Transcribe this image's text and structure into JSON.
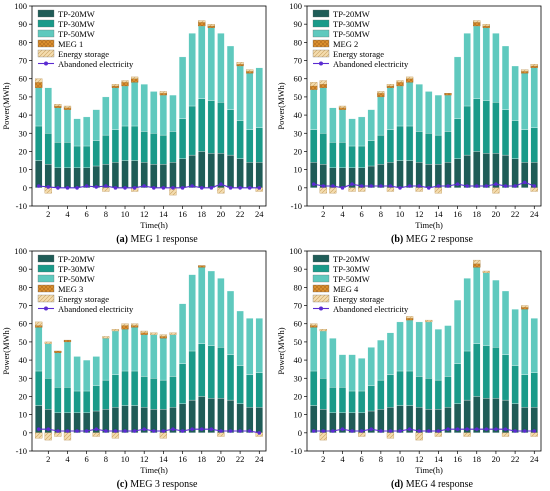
{
  "colors": {
    "tp20": "#1f5c57",
    "tp30": "#1a9a89",
    "tp50": "#5fc9be",
    "meg": "#d98e2e",
    "storage": "#f2d7a6",
    "abandoned": "#5a2bd1"
  },
  "chart_data": [
    {
      "type": "bar",
      "panel": "(a)",
      "caption": "MEG 1 response",
      "xlabel": "Time(h)",
      "ylabel": "Power(MWh)",
      "ylim": [
        -10,
        100
      ],
      "yticks": [
        -10,
        0,
        10,
        20,
        30,
        40,
        50,
        60,
        70,
        80,
        90,
        100
      ],
      "xticks": [
        2,
        4,
        6,
        8,
        10,
        12,
        14,
        16,
        18,
        20,
        22,
        24
      ],
      "legend": [
        "TP-20MW",
        "TP-30MW",
        "TP-50MW",
        "MEG 1",
        "Energy storage",
        "Abandoned electricity"
      ],
      "x": [
        1,
        2,
        3,
        4,
        5,
        6,
        7,
        8,
        9,
        10,
        11,
        12,
        13,
        14,
        15,
        16,
        17,
        18,
        19,
        20,
        21,
        22,
        23,
        24
      ],
      "series": [
        {
          "name": "TP-20MW",
          "values": [
            15,
            13,
            11,
            11,
            11,
            11,
            12,
            13,
            14,
            15,
            15,
            14,
            13,
            13,
            14,
            16,
            18,
            20,
            19,
            19,
            18,
            16,
            14,
            14
          ]
        },
        {
          "name": "TP-30MW",
          "values": [
            19,
            17,
            14,
            14,
            12,
            12,
            14,
            16,
            18,
            19,
            19,
            17,
            17,
            16,
            17,
            22,
            27,
            29,
            29,
            28,
            25,
            21,
            18,
            19
          ]
        },
        {
          "name": "TP-50MW",
          "values": [
            21,
            25,
            19,
            18,
            15,
            16,
            17,
            21,
            23,
            22,
            24,
            26,
            23,
            22,
            20,
            34,
            40,
            40,
            40,
            38,
            35,
            30,
            31,
            33
          ]
        },
        {
          "name": "MEG 1",
          "values": [
            3,
            0,
            1,
            1,
            0,
            0,
            0,
            0,
            1,
            2,
            2,
            0,
            0,
            1,
            0,
            0,
            0,
            2,
            1,
            0,
            0,
            1,
            1,
            0
          ]
        },
        {
          "name": "Energy storage",
          "values": [
            2,
            0,
            1,
            1,
            0,
            0,
            0,
            0,
            1,
            1,
            1,
            0,
            0,
            1,
            0,
            0,
            0,
            1,
            1,
            0,
            0,
            1,
            1,
            0
          ]
        },
        {
          "name": "Energy storage (charging)",
          "values": [
            0,
            -3,
            0,
            0,
            0,
            0,
            0,
            -2,
            0,
            0,
            -2,
            0,
            0,
            0,
            -4,
            0,
            0,
            0,
            0,
            -3,
            0,
            0,
            0,
            -2
          ]
        },
        {
          "name": "Abandoned electricity",
          "values": [
            1,
            0.5,
            0,
            0,
            0,
            1,
            0.5,
            1,
            0,
            0,
            0,
            1,
            0,
            0,
            0,
            0,
            1,
            0,
            0,
            2,
            0,
            0,
            0,
            0
          ]
        }
      ]
    },
    {
      "type": "bar",
      "panel": "(b)",
      "caption": "MEG 2 response",
      "xlabel": "Time(h)",
      "ylabel": "Power(MWh)",
      "ylim": [
        -10,
        100
      ],
      "yticks": [
        -10,
        0,
        10,
        20,
        30,
        40,
        50,
        60,
        70,
        80,
        90,
        100
      ],
      "xticks": [
        2,
        4,
        6,
        8,
        10,
        12,
        14,
        16,
        18,
        20,
        22,
        24
      ],
      "legend": [
        "TP-20MW",
        "TP-30MW",
        "TP-50MW",
        "MEG 2",
        "Energy storage",
        "Abandoned electricity"
      ],
      "x": [
        1,
        2,
        3,
        4,
        5,
        6,
        7,
        8,
        9,
        10,
        11,
        12,
        13,
        14,
        15,
        16,
        17,
        18,
        19,
        20,
        21,
        22,
        23,
        24
      ],
      "series": [
        {
          "name": "TP-20MW",
          "values": [
            14,
            13,
            11,
            11,
            11,
            11,
            12,
            13,
            14,
            15,
            15,
            14,
            13,
            13,
            14,
            16,
            18,
            20,
            19,
            19,
            18,
            16,
            14,
            14
          ]
        },
        {
          "name": "TP-30MW",
          "values": [
            18,
            17,
            14,
            14,
            12,
            12,
            14,
            16,
            18,
            19,
            19,
            17,
            17,
            16,
            17,
            22,
            27,
            29,
            29,
            28,
            25,
            21,
            18,
            19
          ]
        },
        {
          "name": "TP-50MW",
          "values": [
            22,
            25,
            19,
            18,
            15,
            16,
            17,
            21,
            23,
            22,
            24,
            26,
            23,
            22,
            20,
            34,
            40,
            40,
            40,
            38,
            35,
            30,
            31,
            33
          ]
        },
        {
          "name": "MEG 2",
          "values": [
            2,
            2,
            0,
            1,
            0,
            0,
            0,
            2,
            1,
            2,
            2,
            0,
            0,
            0,
            1,
            0,
            0,
            2,
            1,
            0,
            0,
            0,
            1,
            1
          ]
        },
        {
          "name": "Energy storage",
          "values": [
            2,
            2,
            0,
            1,
            0,
            0,
            0,
            1,
            1,
            1,
            1,
            0,
            0,
            0,
            0,
            0,
            0,
            1,
            1,
            0,
            0,
            0,
            1,
            1
          ]
        },
        {
          "name": "Energy storage (charging)",
          "values": [
            0,
            -3,
            -3,
            0,
            -2,
            -2,
            0,
            0,
            -2,
            0,
            0,
            -2,
            0,
            -3,
            0,
            0,
            0,
            0,
            0,
            -3,
            0,
            0,
            0,
            -2
          ]
        },
        {
          "name": "Abandoned electricity",
          "values": [
            2,
            1,
            1,
            0,
            2,
            1,
            1,
            1,
            1,
            0,
            1,
            1,
            0,
            1,
            1,
            2,
            1,
            1,
            1,
            2,
            1,
            1,
            3,
            1
          ]
        }
      ]
    },
    {
      "type": "bar",
      "panel": "(c)",
      "caption": "MEG 3 response",
      "xlabel": "Time(h)",
      "ylabel": "Power(MWh)",
      "ylim": [
        -10,
        100
      ],
      "yticks": [
        -10,
        0,
        10,
        20,
        30,
        40,
        50,
        60,
        70,
        80,
        90,
        100
      ],
      "xticks": [
        2,
        4,
        6,
        8,
        10,
        12,
        14,
        16,
        18,
        20,
        22,
        24
      ],
      "legend": [
        "TP-20MW",
        "TP-30MW",
        "TP-50MW",
        "MEG 3",
        "Energy storage",
        "Abandoned electricity"
      ],
      "x": [
        1,
        2,
        3,
        4,
        5,
        6,
        7,
        8,
        9,
        10,
        11,
        12,
        13,
        14,
        15,
        16,
        17,
        18,
        19,
        20,
        21,
        22,
        23,
        24
      ],
      "series": [
        {
          "name": "TP-20MW",
          "values": [
            15,
            13,
            11,
            11,
            11,
            11,
            12,
            13,
            14,
            15,
            15,
            14,
            13,
            13,
            14,
            16,
            18,
            20,
            19,
            19,
            18,
            16,
            14,
            14
          ]
        },
        {
          "name": "TP-30MW",
          "values": [
            19,
            17,
            14,
            14,
            12,
            12,
            14,
            16,
            18,
            19,
            19,
            17,
            17,
            16,
            17,
            22,
            27,
            29,
            29,
            28,
            25,
            21,
            18,
            19
          ]
        },
        {
          "name": "TP-50MW",
          "values": [
            24,
            19,
            19,
            25,
            19,
            17,
            16,
            23,
            24,
            23,
            24,
            23,
            24,
            23,
            23,
            33,
            42,
            42,
            41,
            38,
            35,
            30,
            31,
            30
          ]
        },
        {
          "name": "MEG 3",
          "values": [
            1,
            0,
            1,
            1,
            0,
            0,
            0,
            0,
            0,
            2,
            1,
            1,
            0,
            1,
            0,
            0,
            0,
            1,
            0,
            0,
            0,
            0,
            0,
            0
          ]
        },
        {
          "name": "Energy storage",
          "values": [
            2,
            1,
            0,
            0,
            0,
            0,
            0,
            1,
            1,
            1,
            1,
            1,
            1,
            1,
            1,
            0,
            0,
            0,
            0,
            0,
            0,
            0,
            0,
            0
          ]
        },
        {
          "name": "Energy storage (charging)",
          "values": [
            -3,
            -4,
            -2,
            -4,
            0,
            0,
            -2,
            0,
            -3,
            0,
            0,
            0,
            0,
            -3,
            0,
            0,
            0,
            0,
            0,
            -2,
            0,
            0,
            0,
            -2
          ]
        },
        {
          "name": "Abandoned electricity",
          "values": [
            2,
            2,
            1,
            1,
            1,
            1,
            2,
            1,
            1,
            1,
            1,
            2,
            1,
            1,
            2,
            1,
            2,
            2,
            2,
            1,
            1,
            1,
            1,
            0
          ]
        }
      ]
    },
    {
      "type": "bar",
      "panel": "(d)",
      "caption": "MEG 4 response",
      "xlabel": "Time(h)",
      "ylabel": "Power(MWh)",
      "ylim": [
        -10,
        100
      ],
      "yticks": [
        -10,
        0,
        10,
        20,
        30,
        40,
        50,
        60,
        70,
        80,
        90,
        100
      ],
      "xticks": [
        2,
        4,
        6,
        8,
        10,
        12,
        14,
        16,
        18,
        20,
        22,
        24
      ],
      "legend": [
        "TP-20MW",
        "TP-30MW",
        "TP-50MW",
        "MEG 4",
        "Energy storage",
        "Abandoned electricity"
      ],
      "x": [
        1,
        2,
        3,
        4,
        5,
        6,
        7,
        8,
        9,
        10,
        11,
        12,
        13,
        14,
        15,
        16,
        17,
        18,
        19,
        20,
        21,
        22,
        23,
        24
      ],
      "series": [
        {
          "name": "TP-20MW",
          "values": [
            15,
            13,
            11,
            11,
            11,
            11,
            12,
            13,
            14,
            15,
            15,
            14,
            13,
            13,
            14,
            16,
            18,
            20,
            19,
            19,
            18,
            16,
            14,
            14
          ]
        },
        {
          "name": "TP-30MW",
          "values": [
            19,
            17,
            14,
            14,
            12,
            12,
            14,
            16,
            18,
            19,
            19,
            17,
            17,
            16,
            17,
            22,
            27,
            29,
            29,
            28,
            25,
            21,
            18,
            19
          ]
        },
        {
          "name": "TP-50MW",
          "values": [
            24,
            26,
            27,
            18,
            20,
            18,
            21,
            22,
            23,
            27,
            28,
            30,
            31,
            28,
            28,
            35,
            40,
            42,
            40,
            37,
            35,
            31,
            36,
            30
          ]
        },
        {
          "name": "MEG 4",
          "values": [
            1,
            0,
            0,
            0,
            0,
            0,
            0,
            0,
            0,
            0,
            1,
            0,
            0,
            0,
            0,
            0,
            0,
            2,
            0,
            0,
            0,
            0,
            1,
            0
          ]
        },
        {
          "name": "Energy storage",
          "values": [
            1,
            1,
            0,
            0,
            0,
            0,
            0,
            0,
            0,
            0,
            1,
            0,
            1,
            0,
            0,
            0,
            0,
            2,
            1,
            0,
            0,
            0,
            1,
            0
          ]
        },
        {
          "name": "Energy storage (charging)",
          "values": [
            0,
            -4,
            0,
            0,
            0,
            -2,
            0,
            0,
            -3,
            0,
            0,
            -4,
            0,
            -2,
            0,
            0,
            -2,
            0,
            0,
            0,
            -2,
            0,
            0,
            -2
          ]
        },
        {
          "name": "Abandoned electricity",
          "values": [
            1,
            1,
            1,
            2,
            1,
            1,
            2,
            1,
            1,
            1,
            2,
            1,
            1,
            1,
            2,
            2,
            2,
            2,
            2,
            2,
            2,
            1,
            1,
            1
          ]
        }
      ]
    }
  ]
}
